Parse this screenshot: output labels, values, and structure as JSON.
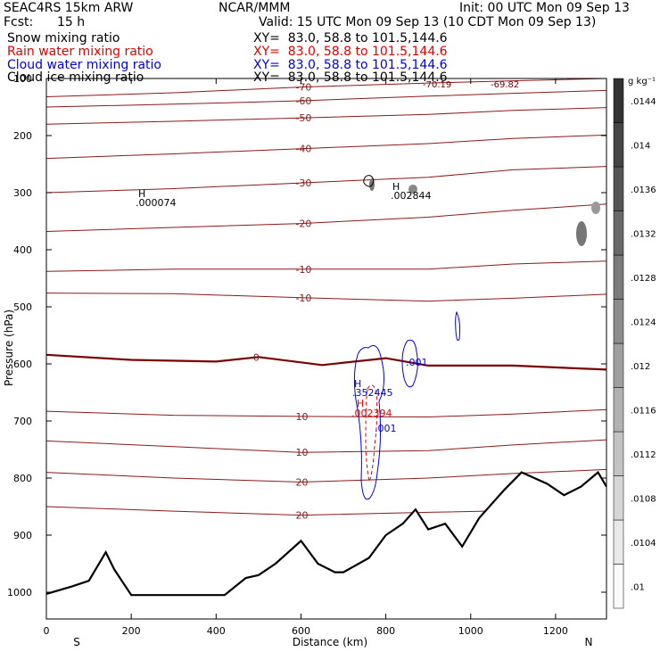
{
  "header": {
    "model": "SEAC4RS 15km ARW",
    "center": "NCAR/MMM",
    "init": "Init: 00 UTC Mon 09 Sep 13",
    "fcst_label": "Fcst:",
    "fcst_value": "15 h",
    "valid": "Valid: 15 UTC Mon 09 Sep 13 (10 CDT Mon 09 Sep 13)",
    "fields": [
      {
        "name": "Snow mixing ratio",
        "xy": "XY=  83.0, 58.8 to 101.5,144.6",
        "color": "#000000"
      },
      {
        "name": "Rain water mixing ratio",
        "xy": "XY=  83.0, 58.8 to 101.5,144.6",
        "color": "#e00000"
      },
      {
        "name": "Cloud water mixing ratio",
        "xy": "XY=  83.0, 58.8 to 101.5,144.6",
        "color": "#0000e0"
      },
      {
        "name": "Cloud ice mixing ratio",
        "xy": "XY=  83.0, 58.8 to 101.5,144.6",
        "color": "#000000"
      }
    ]
  },
  "chart_data": {
    "type": "cross-section",
    "xlabel": "Distance (km)",
    "ylabel": "Pressure (hPa)",
    "x_ticks": [
      0,
      200,
      400,
      600,
      800,
      1000,
      1200
    ],
    "y_ticks": [
      100,
      200,
      300,
      400,
      500,
      600,
      700,
      800,
      900,
      1000
    ],
    "xlim": [
      0,
      1320
    ],
    "ylim": [
      1050,
      100
    ],
    "direction_left": "S",
    "direction_right": "N",
    "colorbar_unit": "g kg⁻¹",
    "colorbar_ticks": [
      ".01",
      ".0104",
      ".0108",
      ".0112",
      ".0116",
      ".012",
      ".0124",
      ".0128",
      ".0132",
      ".0136",
      ".014",
      ".0144"
    ],
    "temperature_contours": [
      {
        "label": "-70",
        "points": [
          [
            0,
            132
          ],
          [
            300,
            125
          ],
          [
            600,
            115
          ],
          [
            900,
            108
          ],
          [
            1100,
            104
          ],
          [
            1320,
            100
          ]
        ]
      },
      {
        "label": "-60",
        "points": [
          [
            0,
            150
          ],
          [
            300,
            145
          ],
          [
            600,
            139
          ],
          [
            900,
            131
          ],
          [
            1100,
            126
          ],
          [
            1320,
            121
          ]
        ]
      },
      {
        "label": "-50",
        "points": [
          [
            0,
            180
          ],
          [
            300,
            175
          ],
          [
            600,
            169
          ],
          [
            900,
            163
          ],
          [
            1100,
            156
          ],
          [
            1320,
            151
          ]
        ]
      },
      {
        "label": "-40",
        "points": [
          [
            0,
            240
          ],
          [
            300,
            232
          ],
          [
            600,
            223
          ],
          [
            900,
            214
          ],
          [
            1100,
            205
          ],
          [
            1320,
            199
          ]
        ]
      },
      {
        "label": "-30",
        "points": [
          [
            0,
            300
          ],
          [
            300,
            293
          ],
          [
            600,
            283
          ],
          [
            900,
            273
          ],
          [
            1100,
            260
          ],
          [
            1320,
            254
          ]
        ]
      },
      {
        "label": "-20",
        "points": [
          [
            0,
            368
          ],
          [
            300,
            361
          ],
          [
            600,
            354
          ],
          [
            900,
            343
          ],
          [
            1100,
            331
          ],
          [
            1320,
            320
          ]
        ]
      },
      {
        "label": "-10",
        "points": [
          [
            0,
            438
          ],
          [
            300,
            434
          ],
          [
            600,
            434
          ],
          [
            900,
            434
          ],
          [
            1100,
            425
          ],
          [
            1320,
            420
          ]
        ]
      },
      {
        "label": "-10",
        "points": [
          [
            0,
            476
          ],
          [
            300,
            477
          ],
          [
            600,
            484
          ],
          [
            900,
            490
          ],
          [
            1100,
            485
          ],
          [
            1320,
            478
          ]
        ]
      },
      {
        "label": "0",
        "points": [
          [
            0,
            584
          ],
          [
            200,
            593
          ],
          [
            400,
            596
          ],
          [
            500,
            588
          ],
          [
            650,
            602
          ],
          [
            800,
            590
          ],
          [
            900,
            603
          ],
          [
            1100,
            603
          ],
          [
            1320,
            610
          ]
        ]
      },
      {
        "label": "10",
        "points": [
          [
            0,
            683
          ],
          [
            300,
            690
          ],
          [
            600,
            692
          ],
          [
            900,
            693
          ],
          [
            1100,
            688
          ],
          [
            1320,
            680
          ]
        ]
      },
      {
        "label": "10",
        "points": [
          [
            0,
            735
          ],
          [
            300,
            745
          ],
          [
            600,
            755
          ],
          [
            900,
            752
          ],
          [
            1100,
            742
          ],
          [
            1320,
            733
          ]
        ]
      },
      {
        "label": "20",
        "points": [
          [
            0,
            790
          ],
          [
            300,
            800
          ],
          [
            600,
            807
          ],
          [
            900,
            800
          ],
          [
            1100,
            792
          ],
          [
            1320,
            785
          ]
        ]
      },
      {
        "label": "20",
        "points": [
          [
            0,
            850
          ],
          [
            300,
            858
          ],
          [
            600,
            865
          ],
          [
            900,
            860
          ],
          [
            1100,
            857
          ],
          [
            1320,
            850
          ]
        ]
      }
    ],
    "terrain": [
      [
        0,
        1003
      ],
      [
        60,
        990
      ],
      [
        100,
        980
      ],
      [
        140,
        930
      ],
      [
        160,
        960
      ],
      [
        200,
        1005
      ],
      [
        300,
        1005
      ],
      [
        420,
        1005
      ],
      [
        470,
        975
      ],
      [
        500,
        970
      ],
      [
        540,
        950
      ],
      [
        600,
        910
      ],
      [
        640,
        950
      ],
      [
        680,
        965
      ],
      [
        700,
        965
      ],
      [
        760,
        940
      ],
      [
        800,
        900
      ],
      [
        840,
        880
      ],
      [
        870,
        855
      ],
      [
        900,
        890
      ],
      [
        940,
        880
      ],
      [
        980,
        920
      ],
      [
        1020,
        870
      ],
      [
        1080,
        820
      ],
      [
        1120,
        790
      ],
      [
        1180,
        810
      ],
      [
        1220,
        830
      ],
      [
        1260,
        815
      ],
      [
        1300,
        790
      ],
      [
        1320,
        815
      ]
    ],
    "snow_label": {
      "label": "H",
      "value": ".000074"
    },
    "ice_label": {
      "label": "H",
      "value": ".002844"
    },
    "cloud_label": {
      "label": "H",
      "value": ".352445"
    },
    "rain_label": {
      "label": "H",
      "value": ".002394"
    },
    "contour_labels": [
      ".001",
      ".001",
      "-70.19",
      "-69.82"
    ]
  }
}
